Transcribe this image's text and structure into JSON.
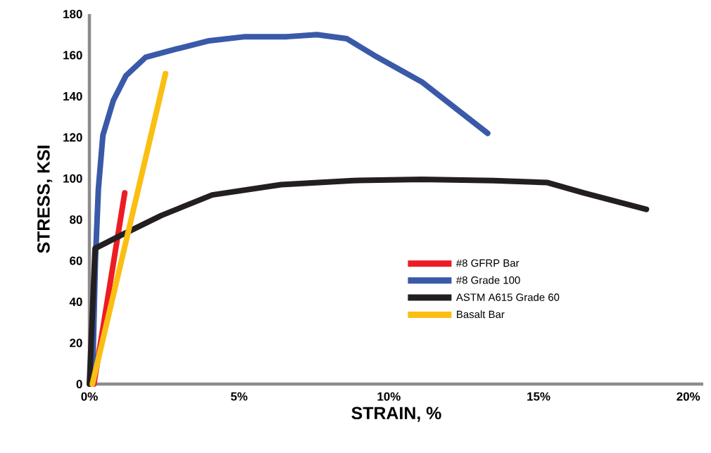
{
  "chart_data": {
    "type": "line",
    "xlabel": "STRAIN, %",
    "ylabel": "STRESS, KSI",
    "xlim": [
      0,
      20.5
    ],
    "ylim": [
      0,
      180
    ],
    "xticks": [
      {
        "value": 0,
        "label": "0%"
      },
      {
        "value": 5,
        "label": "5%"
      },
      {
        "value": 10,
        "label": "10%"
      },
      {
        "value": 15,
        "label": "15%"
      },
      {
        "value": 20,
        "label": "20%"
      }
    ],
    "yticks": [
      0,
      20,
      40,
      60,
      80,
      100,
      120,
      140,
      160,
      180
    ],
    "grid": false,
    "legend": "right",
    "marker": "none",
    "line_style": "solid",
    "series": [
      {
        "name": "#8 GFRP Bar",
        "color": "#ed1c24",
        "x": [
          0.15,
          1.18
        ],
        "values": [
          0,
          93
        ]
      },
      {
        "name": "#8 Grade 100",
        "color": "#3a59a8",
        "x": [
          0.1,
          0.2,
          0.3,
          0.45,
          0.8,
          1.22,
          1.88,
          2.9,
          4.0,
          5.2,
          6.6,
          7.6,
          8.6,
          9.5,
          11.1,
          13.3
        ],
        "values": [
          0,
          60,
          95,
          121,
          138,
          150,
          159,
          163,
          167,
          169,
          169,
          170,
          168,
          160,
          147,
          122
        ]
      },
      {
        "name": "ASTM A615 Grade 60",
        "color": "#231f20",
        "x": [
          0,
          0.19,
          1.0,
          2.4,
          4.1,
          6.4,
          8.8,
          11.1,
          13.5,
          15.3,
          16.5,
          18.6
        ],
        "values": [
          0,
          66,
          72,
          82,
          92,
          97,
          99,
          99.6,
          99,
          98,
          93,
          85
        ]
      },
      {
        "name": "Basalt Bar",
        "color": "#fbbf13",
        "x": [
          0.1,
          2.54
        ],
        "values": [
          0,
          151
        ]
      }
    ]
  }
}
